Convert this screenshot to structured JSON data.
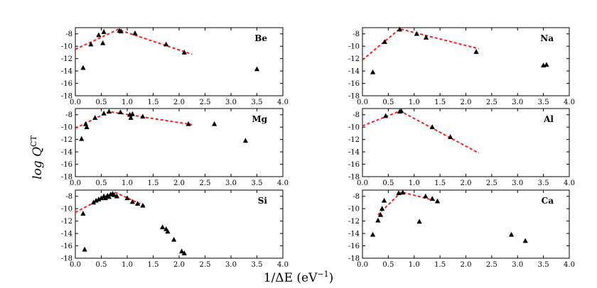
{
  "figure": {
    "ylabel": "log Q",
    "ylabel_sup": "CT",
    "xlabel": "1/ΔE (eV",
    "xlabel_sup": "−1",
    "xlabel_close": ")"
  },
  "chart_data": [
    {
      "type": "scatter",
      "label": "Be",
      "xlim": [
        0,
        4
      ],
      "ylim": [
        -18,
        -7
      ],
      "xticks": [
        "0.0",
        "0.5",
        "1.0",
        "1.5",
        "2.0",
        "2.5",
        "3.0",
        "3.5",
        "4.0"
      ],
      "yticks": [
        "-8",
        "-10",
        "-12",
        "-14",
        "-16",
        "-18"
      ],
      "points": [
        [
          0.15,
          -13.5
        ],
        [
          0.3,
          -9.7
        ],
        [
          0.45,
          -8.2
        ],
        [
          0.53,
          -9.5
        ],
        [
          0.55,
          -7.7
        ],
        [
          0.85,
          -7.5
        ],
        [
          0.88,
          -7.6
        ],
        [
          1.15,
          -7.9
        ],
        [
          1.75,
          -9.7
        ],
        [
          2.1,
          -11.0
        ],
        [
          3.5,
          -13.7
        ]
      ],
      "fit": [
        [
          0.0,
          -10.5
        ],
        [
          0.82,
          -7.3
        ],
        [
          2.25,
          -11.3
        ]
      ]
    },
    {
      "type": "scatter",
      "label": "Na",
      "xlim": [
        0,
        4
      ],
      "ylim": [
        -18,
        -7
      ],
      "xticks": [
        "0.0",
        "0.5",
        "1.0",
        "1.5",
        "2.0",
        "2.5",
        "3.0",
        "3.5",
        "4.0"
      ],
      "yticks": [
        "-8",
        "-10",
        "-12",
        "-14",
        "-16",
        "-18"
      ],
      "points": [
        [
          0.2,
          -14.2
        ],
        [
          0.43,
          -9.3
        ],
        [
          0.72,
          -7.3
        ],
        [
          1.05,
          -8.0
        ],
        [
          1.23,
          -8.6
        ],
        [
          2.2,
          -10.9
        ],
        [
          3.5,
          -13.1
        ],
        [
          3.56,
          -13.0
        ]
      ],
      "fit": [
        [
          0.0,
          -12.2
        ],
        [
          0.72,
          -7.2
        ],
        [
          2.25,
          -10.4
        ]
      ]
    },
    {
      "type": "scatter",
      "label": "Mg",
      "xlim": [
        0,
        4
      ],
      "ylim": [
        -18,
        -7
      ],
      "xticks": [
        "0.0",
        "0.5",
        "1.0",
        "1.5",
        "2.0",
        "2.5",
        "3.0",
        "3.5",
        "4.0"
      ],
      "yticks": [
        "-8",
        "-10",
        "-12",
        "-14",
        "-16",
        "-18"
      ],
      "points": [
        [
          0.12,
          -11.9
        ],
        [
          0.2,
          -9.5
        ],
        [
          0.22,
          -10.0
        ],
        [
          0.38,
          -8.5
        ],
        [
          0.55,
          -7.8
        ],
        [
          0.65,
          -7.5
        ],
        [
          0.87,
          -7.6
        ],
        [
          1.05,
          -8.0
        ],
        [
          1.07,
          -8.5
        ],
        [
          1.1,
          -7.9
        ],
        [
          1.3,
          -8.3
        ],
        [
          2.18,
          -9.5
        ],
        [
          2.68,
          -9.5
        ],
        [
          3.28,
          -12.2
        ]
      ],
      "fit": [
        [
          0.0,
          -10.2
        ],
        [
          0.65,
          -7.5
        ],
        [
          2.25,
          -9.6
        ]
      ]
    },
    {
      "type": "scatter",
      "label": "Al",
      "xlim": [
        0,
        4
      ],
      "ylim": [
        -18,
        -7
      ],
      "xticks": [
        "0.0",
        "0.5",
        "1.0",
        "1.5",
        "2.0",
        "2.5",
        "3.0",
        "3.5",
        "4.0"
      ],
      "yticks": [
        "-8",
        "-10",
        "-12",
        "-14",
        "-16",
        "-18"
      ],
      "points": [
        [
          0.45,
          -8.2
        ],
        [
          0.72,
          -7.5
        ],
        [
          0.75,
          -7.4
        ],
        [
          1.35,
          -10.0
        ],
        [
          1.7,
          -11.6
        ]
      ],
      "fit": [
        [
          0.0,
          -9.8
        ],
        [
          0.73,
          -7.4
        ],
        [
          2.25,
          -14.2
        ]
      ]
    },
    {
      "type": "scatter",
      "label": "Si",
      "xlim": [
        0,
        4
      ],
      "ylim": [
        -18,
        -7
      ],
      "xticks": [
        "0.0",
        "0.5",
        "1.0",
        "1.5",
        "2.0",
        "2.5",
        "3.0",
        "3.5",
        "4.0"
      ],
      "yticks": [
        "-8",
        "-10",
        "-12",
        "-14",
        "-16",
        "-18"
      ],
      "points": [
        [
          0.15,
          -10.8
        ],
        [
          0.18,
          -16.6
        ],
        [
          0.35,
          -9.0
        ],
        [
          0.4,
          -8.7
        ],
        [
          0.45,
          -8.5
        ],
        [
          0.5,
          -8.3
        ],
        [
          0.55,
          -8.0
        ],
        [
          0.58,
          -8.3
        ],
        [
          0.62,
          -7.9
        ],
        [
          0.65,
          -8.1
        ],
        [
          0.68,
          -7.7
        ],
        [
          0.72,
          -7.6
        ],
        [
          0.75,
          -7.8
        ],
        [
          0.8,
          -8.0
        ],
        [
          1.0,
          -8.3
        ],
        [
          1.1,
          -8.9
        ],
        [
          1.2,
          -9.2
        ],
        [
          1.3,
          -9.5
        ],
        [
          1.68,
          -13.0
        ],
        [
          1.75,
          -13.3
        ],
        [
          1.78,
          -13.7
        ],
        [
          1.9,
          -15.0
        ],
        [
          2.05,
          -16.9
        ],
        [
          2.1,
          -17.2
        ]
      ],
      "fit": [
        [
          0.0,
          -10.6
        ],
        [
          0.75,
          -7.3
        ],
        [
          1.35,
          -9.6
        ]
      ]
    },
    {
      "type": "scatter",
      "label": "Ca",
      "xlim": [
        0,
        4
      ],
      "ylim": [
        -18,
        -7
      ],
      "xticks": [
        "0.0",
        "0.5",
        "1.0",
        "1.5",
        "2.0",
        "2.5",
        "3.0",
        "3.5",
        "4.0"
      ],
      "yticks": [
        "-8",
        "-10",
        "-12",
        "-14",
        "-16",
        "-18"
      ],
      "points": [
        [
          0.2,
          -14.2
        ],
        [
          0.3,
          -11.9
        ],
        [
          0.35,
          -11.0
        ],
        [
          0.38,
          -10.0
        ],
        [
          0.42,
          -8.7
        ],
        [
          0.7,
          -7.5
        ],
        [
          0.78,
          -7.4
        ],
        [
          1.1,
          -12.1
        ],
        [
          1.22,
          -8.0
        ],
        [
          1.35,
          -8.4
        ],
        [
          1.45,
          -8.8
        ],
        [
          2.88,
          -14.2
        ],
        [
          3.15,
          -15.2
        ]
      ],
      "fit": [
        [
          0.3,
          -11.0
        ],
        [
          0.75,
          -7.3
        ],
        [
          1.45,
          -8.8
        ]
      ]
    }
  ]
}
